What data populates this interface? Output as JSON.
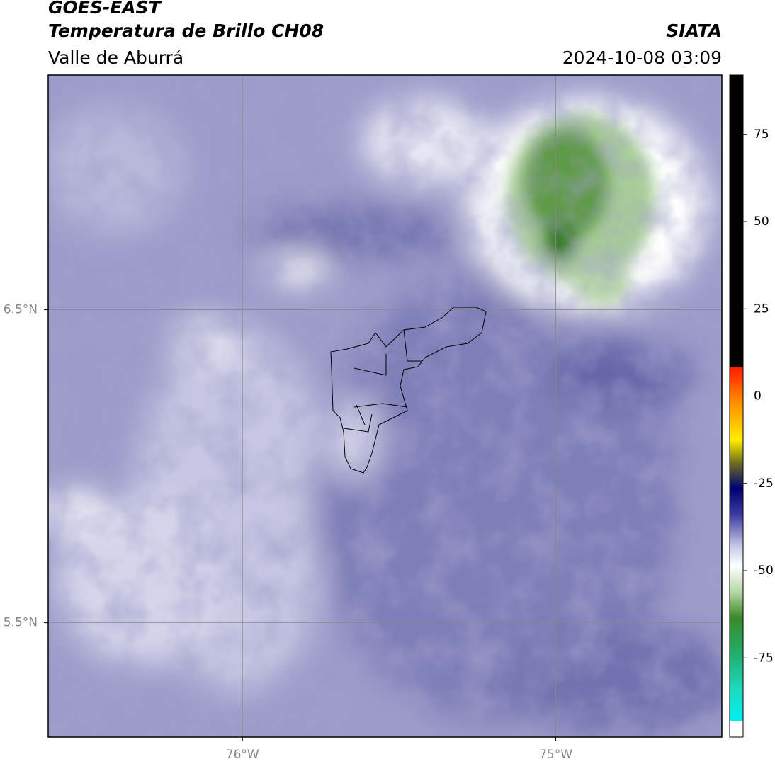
{
  "header": {
    "title": "GOES-EAST",
    "subtitle": "Temperatura de Brillo CH08",
    "region": "Valle de Aburrá",
    "source": "SIATA",
    "datetime": "2024-10-08 03:09"
  },
  "map": {
    "xlim": [
      -76.62,
      -74.47
    ],
    "ylim": [
      5.135,
      7.25
    ],
    "xticks": [
      {
        "value": -76,
        "label": "76°W"
      },
      {
        "value": -75,
        "label": "75°W"
      }
    ],
    "yticks": [
      {
        "value": 6.5,
        "label": "6.5°N"
      },
      {
        "value": 5.5,
        "label": "5.5°N"
      }
    ],
    "grid": true
  },
  "colorbar": {
    "lim": [
      -93,
      92
    ],
    "ticks": [
      75,
      50,
      25,
      0,
      -25,
      -50,
      -75
    ]
  }
}
